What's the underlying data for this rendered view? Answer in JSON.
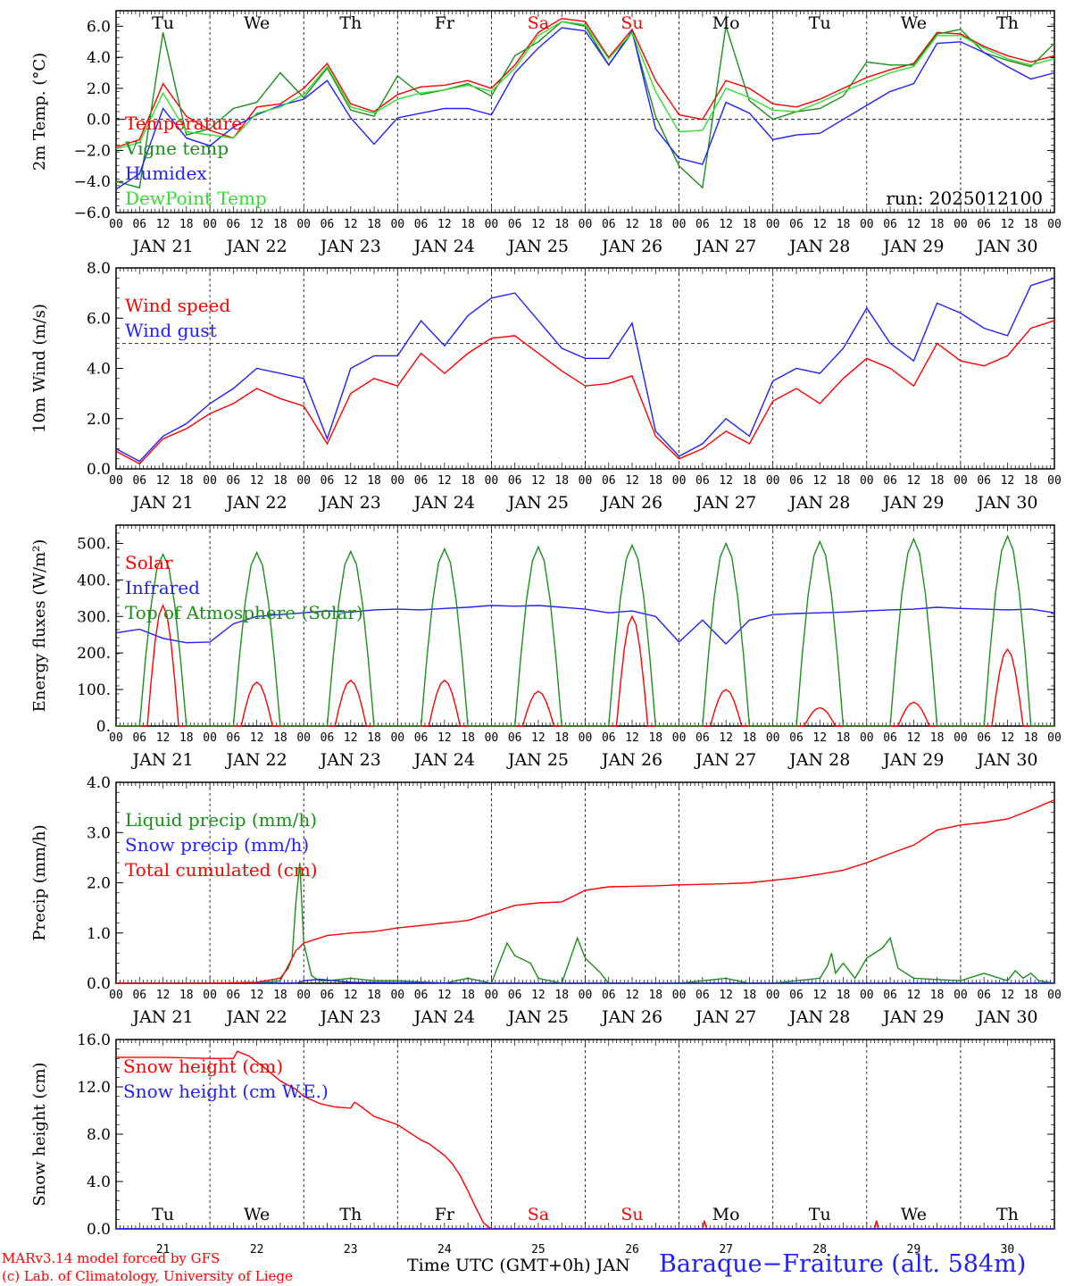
{
  "run_label": "run: 2025012100",
  "hour_ticks": [
    "00",
    "06",
    "12",
    "18"
  ],
  "days": [
    {
      "date": "JAN 21",
      "dow": "Tu",
      "num": "21",
      "weekend": false
    },
    {
      "date": "JAN 22",
      "dow": "We",
      "num": "22",
      "weekend": false
    },
    {
      "date": "JAN 23",
      "dow": "Th",
      "num": "23",
      "weekend": false
    },
    {
      "date": "JAN 24",
      "dow": "Fr",
      "num": "24",
      "weekend": false
    },
    {
      "date": "JAN 25",
      "dow": "Sa",
      "num": "25",
      "weekend": true
    },
    {
      "date": "JAN 26",
      "dow": "Su",
      "num": "26",
      "weekend": true
    },
    {
      "date": "JAN 27",
      "dow": "Mo",
      "num": "27",
      "weekend": false
    },
    {
      "date": "JAN 28",
      "dow": "Tu",
      "num": "28",
      "weekend": false
    },
    {
      "date": "JAN 29",
      "dow": "We",
      "num": "29",
      "weekend": false
    },
    {
      "date": "JAN 30",
      "dow": "Th",
      "num": "30",
      "weekend": false
    }
  ],
  "colors": {
    "red": "#ff0000",
    "green": "#1a8f1a",
    "blue": "#2020ff",
    "lightgreen": "#33dd33",
    "axis": "#000000"
  },
  "footer": {
    "model": "MARv3.14 model forced by GFS",
    "credit": "(c) Lab. of Climatology, University of Liege",
    "time_axis": "Time UTC (GMT+0h) JAN",
    "station": "Baraque−Fraiture (alt. 584m)"
  },
  "chart_data": [
    {
      "type": "line",
      "ylabel": "2m Temp. (°C)",
      "ylim": [
        -6,
        7
      ],
      "yticks": [
        6,
        4,
        2,
        0,
        -2,
        -4,
        -6
      ],
      "ytick_labels": [
        "6.0",
        "4.0",
        "2.0",
        "0.0",
        "−2.0",
        "−4.0",
        "−6.0"
      ],
      "reference_line": 0,
      "x_hours": [
        0,
        6,
        12,
        18,
        24,
        30,
        36,
        42,
        48,
        54,
        60,
        66,
        72,
        78,
        84,
        90,
        96,
        102,
        108,
        114,
        120,
        126,
        132,
        138,
        144,
        150,
        156,
        162,
        168,
        174,
        180,
        186,
        192,
        198,
        204,
        210,
        216,
        222,
        228,
        234,
        240
      ],
      "series": [
        {
          "name": "Temperature",
          "color": "red",
          "values": [
            -1.8,
            -1.3,
            2.3,
            0.2,
            -0.7,
            -1.2,
            0.8,
            1.0,
            2.0,
            3.6,
            1.0,
            0.5,
            1.6,
            2.1,
            2.2,
            2.5,
            2.0,
            3.5,
            5.6,
            6.5,
            6.3,
            4.0,
            5.8,
            2.5,
            0.3,
            0.0,
            2.5,
            2.0,
            1.0,
            0.8,
            1.3,
            2.0,
            2.7,
            3.2,
            3.6,
            5.6,
            5.5,
            4.7,
            4.1,
            3.7,
            4.1
          ]
        },
        {
          "name": "Vigne temp",
          "color": "green",
          "values": [
            -4.0,
            -4.4,
            5.6,
            -1.0,
            -0.6,
            0.7,
            1.1,
            3.0,
            1.4,
            3.3,
            0.6,
            0.2,
            2.8,
            1.6,
            1.9,
            2.3,
            1.5,
            4.1,
            5.0,
            6.3,
            6.0,
            3.5,
            5.6,
            0.2,
            -3.0,
            -4.4,
            6.0,
            1.2,
            0.0,
            0.5,
            0.7,
            1.5,
            3.7,
            3.5,
            3.5,
            5.5,
            5.8,
            4.3,
            3.8,
            3.4,
            4.9
          ]
        },
        {
          "name": "Humidex",
          "color": "blue",
          "values": [
            -4.5,
            -3.5,
            0.7,
            -1.2,
            -1.7,
            -0.5,
            0.3,
            0.9,
            1.3,
            2.5,
            0.1,
            -1.6,
            0.1,
            0.4,
            0.7,
            0.7,
            0.3,
            3.0,
            4.6,
            5.9,
            5.7,
            3.5,
            5.7,
            -0.6,
            -2.5,
            -2.9,
            1.1,
            0.4,
            -1.3,
            -1.0,
            -0.9,
            0.0,
            0.9,
            1.8,
            2.3,
            4.9,
            5.0,
            4.3,
            3.4,
            2.6,
            3.0
          ]
        },
        {
          "name": "DewPoint Temp",
          "color": "lightgreen",
          "values": [
            -1.9,
            -1.5,
            1.7,
            -0.8,
            -1.0,
            -1.2,
            0.4,
            0.8,
            1.6,
            3.4,
            0.8,
            0.4,
            1.3,
            1.7,
            1.9,
            2.2,
            1.8,
            3.3,
            5.4,
            6.3,
            6.1,
            3.9,
            5.6,
            1.8,
            -0.8,
            -0.7,
            2.0,
            1.4,
            0.6,
            0.5,
            1.1,
            1.8,
            2.4,
            3.0,
            3.4,
            5.4,
            5.4,
            4.6,
            3.9,
            3.5,
            3.9
          ]
        }
      ]
    },
    {
      "type": "line",
      "ylabel": "10m Wind (m/s)",
      "ylim": [
        0,
        8
      ],
      "yticks": [
        8,
        6,
        4,
        2,
        0
      ],
      "ytick_labels": [
        "8.0",
        "6.0",
        "4.0",
        "2.0",
        "0.0"
      ],
      "reference_line": 5,
      "x_hours": [
        0,
        6,
        12,
        18,
        24,
        30,
        36,
        42,
        48,
        54,
        60,
        66,
        72,
        78,
        84,
        90,
        96,
        102,
        108,
        114,
        120,
        126,
        132,
        138,
        144,
        150,
        156,
        162,
        168,
        174,
        180,
        186,
        192,
        198,
        204,
        210,
        216,
        222,
        228,
        234,
        240
      ],
      "series": [
        {
          "name": "Wind speed",
          "color": "red",
          "values": [
            0.7,
            0.2,
            1.2,
            1.6,
            2.2,
            2.6,
            3.2,
            2.8,
            2.5,
            1.0,
            3.0,
            3.6,
            3.3,
            4.6,
            3.8,
            4.6,
            5.2,
            5.3,
            4.6,
            3.9,
            3.3,
            3.4,
            3.7,
            1.3,
            0.4,
            0.8,
            1.5,
            1.0,
            2.7,
            3.2,
            2.6,
            3.6,
            4.4,
            4.0,
            3.3,
            5.0,
            4.3,
            4.1,
            4.5,
            5.6,
            5.9
          ]
        },
        {
          "name": "Wind gust",
          "color": "blue",
          "values": [
            0.8,
            0.3,
            1.3,
            1.8,
            2.6,
            3.2,
            4.0,
            3.8,
            3.6,
            1.2,
            4.0,
            4.5,
            4.5,
            5.9,
            4.9,
            6.1,
            6.8,
            7.0,
            5.9,
            4.8,
            4.4,
            4.4,
            5.8,
            1.5,
            0.5,
            1.0,
            2.0,
            1.3,
            3.5,
            4.0,
            3.8,
            4.8,
            6.4,
            5.0,
            4.3,
            6.6,
            6.2,
            5.6,
            5.3,
            7.3,
            7.6
          ]
        }
      ]
    },
    {
      "type": "line",
      "ylabel": "Energy fluxes (W/m²)",
      "ylim": [
        0,
        550
      ],
      "yticks": [
        500,
        400,
        300,
        200,
        100,
        0
      ],
      "ytick_labels": [
        "500.",
        "400.",
        "300.",
        "200.",
        "100.",
        "0."
      ],
      "series": [
        {
          "name": "Solar",
          "color": "red",
          "daily_peaks": [
            330,
            120,
            125,
            125,
            95,
            300,
            100,
            50,
            65,
            210
          ]
        },
        {
          "name": "Infrared",
          "color": "blue",
          "x_hours": [
            0,
            6,
            12,
            18,
            24,
            30,
            36,
            42,
            48,
            54,
            60,
            66,
            72,
            78,
            84,
            90,
            96,
            102,
            108,
            114,
            120,
            126,
            132,
            138,
            144,
            150,
            156,
            162,
            168,
            174,
            180,
            186,
            192,
            198,
            204,
            210,
            216,
            222,
            228,
            234,
            240
          ],
          "values": [
            255,
            265,
            240,
            228,
            230,
            280,
            300,
            305,
            310,
            315,
            312,
            318,
            320,
            318,
            322,
            325,
            330,
            328,
            330,
            325,
            320,
            310,
            315,
            300,
            230,
            290,
            225,
            290,
            305,
            308,
            310,
            312,
            315,
            318,
            320,
            325,
            322,
            320,
            318,
            320,
            310
          ]
        },
        {
          "name": "Top of Atmosphere (Solar)",
          "color": "green",
          "daily_peaks": [
            470,
            475,
            478,
            485,
            490,
            495,
            500,
            505,
            512,
            520
          ]
        }
      ]
    },
    {
      "type": "line",
      "ylabel": "Precip (mm/h)",
      "ylim": [
        0,
        4
      ],
      "yticks": [
        4,
        3,
        2,
        1,
        0
      ],
      "ytick_labels": [
        "4.0",
        "3.0",
        "2.0",
        "1.0",
        "0.0"
      ],
      "series": [
        {
          "name": "Liquid precip (mm/h)",
          "color": "green",
          "x_hours": [
            0,
            24,
            36,
            42,
            45,
            46,
            47,
            48,
            50,
            52,
            54,
            60,
            66,
            72,
            84,
            90,
            96,
            100,
            102,
            106,
            108,
            114,
            118,
            120,
            124,
            126,
            132,
            144,
            156,
            162,
            168,
            174,
            180,
            182,
            183,
            184,
            186,
            188,
            189,
            192,
            196,
            198,
            200,
            204,
            216,
            222,
            228,
            230,
            232,
            234,
            236,
            240
          ],
          "values": [
            0,
            0,
            0,
            0.05,
            0.5,
            1.6,
            2.4,
            0.8,
            0.15,
            0.05,
            0.05,
            0.1,
            0.05,
            0.05,
            0,
            0.1,
            0,
            0.8,
            0.55,
            0.4,
            0.1,
            0,
            0.9,
            0.5,
            0.2,
            0,
            0,
            0,
            0.1,
            0,
            0,
            0.05,
            0.1,
            0.35,
            0.6,
            0.2,
            0.4,
            0.2,
            0.1,
            0.5,
            0.7,
            0.9,
            0.3,
            0.1,
            0.05,
            0.2,
            0.05,
            0.25,
            0.1,
            0.2,
            0.05,
            0
          ]
        },
        {
          "name": "Snow precip (mm/h)",
          "color": "blue",
          "x_hours": [
            0,
            46,
            48,
            52,
            56,
            60,
            96,
            240
          ],
          "values": [
            0,
            0,
            0.05,
            0.08,
            0.05,
            0.02,
            0,
            0
          ]
        },
        {
          "name": "Total cumulated (cm)",
          "color": "red",
          "x_hours": [
            0,
            24,
            36,
            42,
            44,
            45,
            46,
            47,
            48,
            54,
            60,
            66,
            72,
            78,
            84,
            90,
            96,
            102,
            108,
            114,
            120,
            126,
            132,
            138,
            144,
            156,
            162,
            168,
            174,
            180,
            186,
            192,
            198,
            204,
            210,
            216,
            222,
            228,
            234,
            240
          ],
          "values": [
            0,
            0,
            0.02,
            0.1,
            0.3,
            0.5,
            0.65,
            0.72,
            0.8,
            0.95,
            1.0,
            1.03,
            1.1,
            1.15,
            1.2,
            1.25,
            1.4,
            1.55,
            1.6,
            1.62,
            1.85,
            1.92,
            1.93,
            1.94,
            1.96,
            1.98,
            2.0,
            2.05,
            2.1,
            2.17,
            2.25,
            2.4,
            2.58,
            2.75,
            3.05,
            3.15,
            3.2,
            3.27,
            3.45,
            3.65
          ]
        }
      ]
    },
    {
      "type": "line",
      "ylabel": "Snow height (cm)",
      "ylim": [
        0,
        16
      ],
      "yticks": [
        16,
        12,
        8,
        4,
        0
      ],
      "ytick_labels": [
        "16.0",
        "12.0",
        "8.0",
        "4.0",
        "0.0"
      ],
      "series": [
        {
          "name": "Snow height (cm)",
          "color": "red",
          "x_hours": [
            0,
            12,
            24,
            30,
            31,
            34,
            38,
            42,
            46,
            48,
            52,
            56,
            60,
            61,
            62,
            66,
            72,
            78,
            80,
            84,
            86,
            88,
            90,
            92,
            94,
            96,
            100,
            144,
            150,
            150.5,
            151,
            194,
            194.5,
            195,
            240
          ],
          "values": [
            14.5,
            14.5,
            14.4,
            14.4,
            15.0,
            14.6,
            13.6,
            12.5,
            11.8,
            11.2,
            10.6,
            10.3,
            10.2,
            10.7,
            10.5,
            9.5,
            8.8,
            7.5,
            7.2,
            6.2,
            5.5,
            4.5,
            3.2,
            1.8,
            0.5,
            0,
            0,
            0,
            0,
            0.7,
            0,
            0,
            0.7,
            0,
            0
          ]
        },
        {
          "name": "Snow height (cm W.E.)",
          "color": "blue",
          "x_hours": [
            0,
            240
          ],
          "values": [
            0,
            0
          ]
        }
      ]
    }
  ]
}
